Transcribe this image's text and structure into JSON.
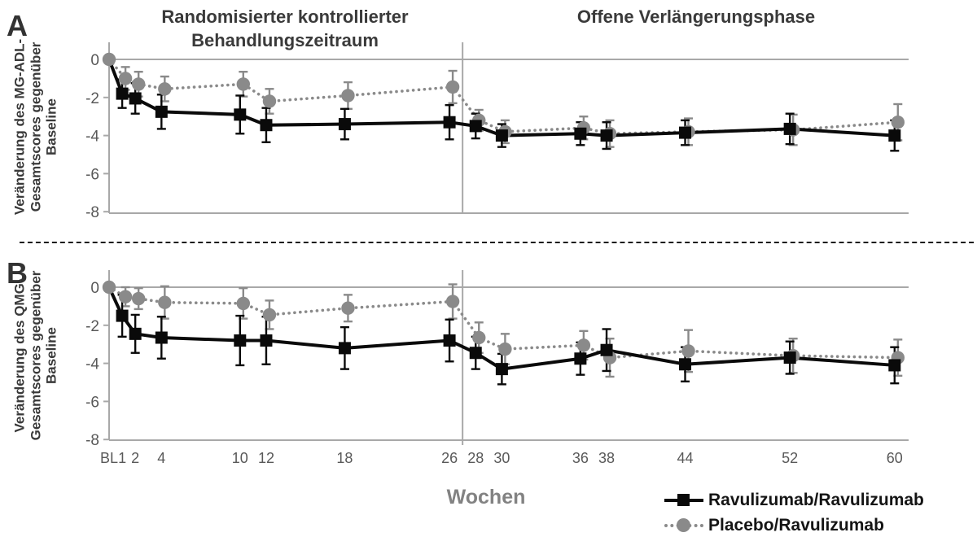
{
  "figure": {
    "phase_titles": [
      "Randomisierter kontrollierter Behandlungszeitraum",
      "Offene Verlängerungsphase"
    ],
    "xlabel": "Wochen",
    "legend": [
      {
        "label": "Ravulizumab/Ravulizumab",
        "marker": "square",
        "line": "solid",
        "color": "#0a0a0a"
      },
      {
        "label": "Placebo/Ravulizumab",
        "marker": "circle",
        "line": "dotted",
        "color": "#8a8a8a"
      }
    ],
    "colors": {
      "axis": "#a8a8a8",
      "tick_text": "#595959",
      "title": "#3a3a3a",
      "xlabel": "#828282"
    }
  },
  "chart_data": [
    {
      "type": "line",
      "panel": "A",
      "ylabel": "Veränderung des MG-ADL-Gesamtscores gegenüber Baseline",
      "xlabel": "Wochen",
      "x_weeks": [
        0,
        1,
        2,
        4,
        10,
        12,
        18,
        26,
        28,
        30,
        36,
        38,
        44,
        52,
        60
      ],
      "x_tick_labels": [
        "BL",
        "1",
        "2",
        "4",
        "10",
        "12",
        "18",
        "26",
        "28",
        "30",
        "36",
        "38",
        "44",
        "52",
        "60"
      ],
      "ylim": [
        -8,
        0
      ],
      "yticks": [
        0,
        -2,
        -4,
        -6,
        -8
      ],
      "phase_divider_after_week": 27,
      "legend_position": "none",
      "grid": "zero-line only",
      "series": [
        {
          "name": "Ravulizumab/Ravulizumab",
          "marker": "square",
          "line": "solid",
          "color": "#0a0a0a",
          "values": [
            0,
            -1.8,
            -2.05,
            -2.75,
            -2.9,
            -3.45,
            -3.4,
            -3.3,
            -3.5,
            -4.0,
            -3.9,
            -4.0,
            -3.85,
            -3.65,
            -4.0
          ],
          "err": [
            0,
            0.75,
            0.8,
            0.9,
            1.0,
            0.9,
            0.8,
            0.9,
            0.65,
            0.6,
            0.6,
            0.7,
            0.65,
            0.8,
            0.8
          ]
        },
        {
          "name": "Placebo/Ravulizumab",
          "marker": "circle",
          "line": "dotted",
          "color": "#8a8a8a",
          "values": [
            0,
            -1.0,
            -1.3,
            -1.55,
            -1.3,
            -2.2,
            -1.9,
            -1.45,
            -3.2,
            -3.8,
            -3.6,
            -3.9,
            -3.8,
            -3.7,
            -3.3
          ],
          "err": [
            0,
            0.6,
            0.65,
            0.65,
            0.65,
            0.65,
            0.7,
            0.85,
            0.55,
            0.6,
            0.6,
            0.7,
            0.7,
            0.8,
            0.95
          ]
        }
      ]
    },
    {
      "type": "line",
      "panel": "B",
      "ylabel": "Veränderung des QMG-Gesamtscores gegenüber Baseline",
      "xlabel": "Wochen",
      "x_weeks": [
        0,
        1,
        2,
        4,
        10,
        12,
        18,
        26,
        28,
        30,
        36,
        38,
        44,
        52,
        60
      ],
      "x_tick_labels": [
        "BL",
        "1",
        "2",
        "4",
        "10",
        "12",
        "18",
        "26",
        "28",
        "30",
        "36",
        "38",
        "44",
        "52",
        "60"
      ],
      "ylim": [
        -8,
        0
      ],
      "yticks": [
        0,
        -2,
        -4,
        -6,
        -8
      ],
      "phase_divider_after_week": 27,
      "legend_position": "bottom-right",
      "grid": "zero-line only",
      "series": [
        {
          "name": "Ravulizumab/Ravulizumab",
          "marker": "square",
          "line": "solid",
          "color": "#0a0a0a",
          "values": [
            0,
            -1.5,
            -2.45,
            -2.65,
            -2.8,
            -2.8,
            -3.2,
            -2.8,
            -3.45,
            -4.3,
            -3.75,
            -3.3,
            -4.05,
            -3.7,
            -4.1
          ],
          "err": [
            0,
            1.1,
            1.0,
            1.1,
            1.3,
            1.25,
            1.1,
            1.1,
            0.85,
            0.8,
            0.85,
            1.1,
            0.9,
            0.85,
            0.95
          ]
        },
        {
          "name": "Placebo/Ravulizumab",
          "marker": "circle",
          "line": "dotted",
          "color": "#8a8a8a",
          "values": [
            0,
            -0.5,
            -0.6,
            -0.8,
            -0.85,
            -1.45,
            -1.1,
            -0.75,
            -2.65,
            -3.25,
            -3.05,
            -3.7,
            -3.35,
            -3.6,
            -3.7
          ],
          "err": [
            0,
            0.5,
            0.55,
            0.85,
            0.8,
            0.75,
            0.7,
            0.9,
            0.8,
            0.8,
            0.75,
            1.0,
            1.1,
            0.9,
            0.95
          ]
        }
      ]
    }
  ]
}
